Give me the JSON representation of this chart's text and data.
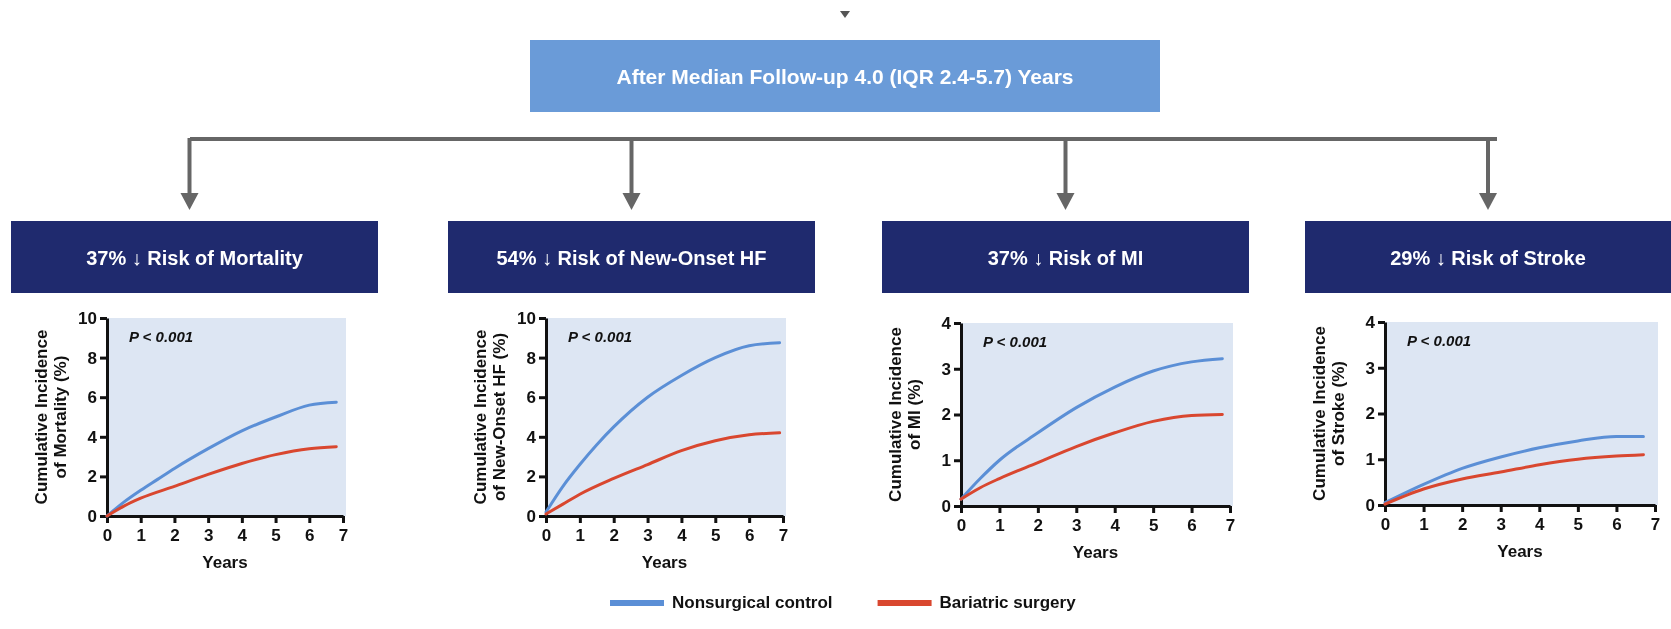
{
  "chart_data": [
    {
      "type": "other",
      "title": "After Median Follow-up 4.0 (IQR 2.4-5.7) Years"
    },
    {
      "type": "line",
      "title": "37% ↓ Risk of Mortality",
      "ylabel": "Cumulative Incidence of Mortality (%)",
      "xlabel": "Years",
      "xlim": [
        0,
        7
      ],
      "xticks": [
        0,
        1,
        2,
        3,
        4,
        5,
        6,
        7
      ],
      "ylim": [
        0,
        10
      ],
      "yticks": [
        0,
        2,
        4,
        6,
        8,
        10
      ],
      "annotations": [
        "P < 0.001"
      ],
      "grid": false,
      "marker": "none",
      "line_style": "solid",
      "series": [
        {
          "color": "#5b8fd6",
          "x": [
            0,
            0.5,
            1,
            1.5,
            2,
            3,
            4,
            5,
            6,
            6.8
          ],
          "values": [
            0,
            0.7,
            1.3,
            1.85,
            2.4,
            3.4,
            4.3,
            5.0,
            5.6,
            5.75
          ]
        },
        {
          "color": "#d9472f",
          "x": [
            0,
            0.5,
            1,
            2,
            3,
            4,
            5,
            6,
            6.8
          ],
          "values": [
            0,
            0.5,
            0.9,
            1.5,
            2.1,
            2.65,
            3.1,
            3.4,
            3.5
          ]
        }
      ]
    },
    {
      "type": "line",
      "title": "54% ↓ Risk of New-Onset HF",
      "ylabel": "Cumulative Incidence of New-Onset HF (%)",
      "xlabel": "Years",
      "xlim": [
        0,
        7
      ],
      "xticks": [
        0,
        1,
        2,
        3,
        4,
        5,
        6,
        7
      ],
      "ylim": [
        0,
        10
      ],
      "yticks": [
        0,
        2,
        4,
        6,
        8,
        10
      ],
      "annotations": [
        "P < 0.001"
      ],
      "grid": false,
      "marker": "none",
      "line_style": "solid",
      "legend": "bottom",
      "series": [
        {
          "name": "Nonsurgical control",
          "color": "#5b8fd6",
          "x": [
            0,
            0.5,
            1,
            1.5,
            2,
            3,
            4,
            5,
            6,
            6.9
          ],
          "values": [
            0.2,
            1.5,
            2.6,
            3.6,
            4.5,
            6.0,
            7.1,
            8.0,
            8.6,
            8.75
          ]
        },
        {
          "name": "Bariatric surgery",
          "color": "#d9472f",
          "x": [
            0,
            0.5,
            1,
            2,
            3,
            4,
            5,
            6,
            6.9
          ],
          "values": [
            0.1,
            0.6,
            1.1,
            1.9,
            2.6,
            3.3,
            3.8,
            4.1,
            4.2
          ]
        }
      ]
    },
    {
      "type": "line",
      "title": "37% ↓ Risk of MI",
      "ylabel": "Cumulative Incidence of MI (%)",
      "xlabel": "Years",
      "xlim": [
        0,
        7
      ],
      "xticks": [
        0,
        1,
        2,
        3,
        4,
        5,
        6,
        7
      ],
      "ylim": [
        0,
        4
      ],
      "yticks": [
        0,
        1,
        2,
        3,
        4
      ],
      "annotations": [
        "P < 0.001"
      ],
      "grid": false,
      "marker": "none",
      "line_style": "solid",
      "series": [
        {
          "color": "#5b8fd6",
          "x": [
            0,
            0.5,
            1,
            2,
            3,
            4,
            5,
            6,
            6.8
          ],
          "values": [
            0.15,
            0.6,
            1.0,
            1.6,
            2.15,
            2.6,
            2.95,
            3.15,
            3.22
          ]
        },
        {
          "color": "#d9472f",
          "x": [
            0,
            0.5,
            1,
            2,
            3,
            4,
            5,
            6,
            6.8
          ],
          "values": [
            0.15,
            0.4,
            0.6,
            0.95,
            1.3,
            1.6,
            1.85,
            1.98,
            2.0
          ]
        }
      ]
    },
    {
      "type": "line",
      "title": "29% ↓ Risk of Stroke",
      "ylabel": "Cumulative Incidence of Stroke (%)",
      "xlabel": "Years",
      "xlim": [
        0,
        7
      ],
      "xticks": [
        0,
        1,
        2,
        3,
        4,
        5,
        6,
        7
      ],
      "ylim": [
        0,
        4
      ],
      "yticks": [
        0,
        1,
        2,
        3,
        4
      ],
      "annotations": [
        "P < 0.001"
      ],
      "grid": false,
      "marker": "none",
      "line_style": "solid",
      "series": [
        {
          "color": "#5b8fd6",
          "x": [
            0,
            1,
            2,
            3,
            4,
            5,
            6,
            6.7
          ],
          "values": [
            0.05,
            0.45,
            0.8,
            1.05,
            1.25,
            1.4,
            1.5,
            1.5
          ]
        },
        {
          "color": "#d9472f",
          "x": [
            0,
            1,
            2,
            3,
            4,
            5,
            6,
            6.7
          ],
          "values": [
            0.02,
            0.35,
            0.57,
            0.72,
            0.88,
            1.0,
            1.07,
            1.1
          ]
        }
      ]
    }
  ]
}
